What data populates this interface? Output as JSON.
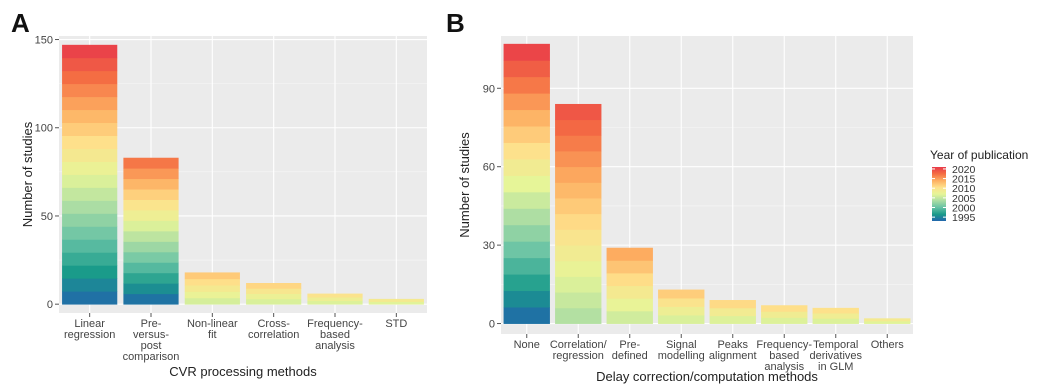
{
  "panels": [
    {
      "letter": "A",
      "chart_data": {
        "type": "bar",
        "stacked_by": "Year of publication",
        "categories": [
          [
            "Linear",
            "regression"
          ],
          [
            "Pre-",
            "versus-",
            "post",
            "comparison"
          ],
          [
            "Non-linear",
            "fit"
          ],
          [
            "Cross-",
            "correlation"
          ],
          [
            "Frequency-",
            "based",
            "analysis"
          ],
          [
            "STD"
          ]
        ],
        "values": [
          147,
          83,
          18,
          12,
          6,
          3
        ],
        "xlabel": "CVR processing methods",
        "ylabel": "Number of studies",
        "yticks": [
          0,
          50,
          100,
          150
        ],
        "ylim": [
          -5,
          152
        ],
        "grid": true
      }
    },
    {
      "letter": "B",
      "chart_data": {
        "type": "bar",
        "stacked_by": "Year of publication",
        "categories": [
          [
            "None"
          ],
          [
            "Correlation/",
            "regression"
          ],
          [
            "Pre-",
            "defined"
          ],
          [
            "Signal",
            "modelling"
          ],
          [
            "Peaks",
            "alignment"
          ],
          [
            "Frequency-",
            "based",
            "analysis"
          ],
          [
            "Temporal",
            "derivatives",
            "in GLM"
          ],
          [
            "Others"
          ]
        ],
        "values": [
          107,
          84,
          29,
          13,
          9,
          7,
          6,
          2
        ],
        "xlabel": "Delay correction/computation methods",
        "ylabel": "Number of studies",
        "yticks": [
          0,
          30,
          60,
          90
        ],
        "ylim": [
          -4,
          110
        ],
        "grid": true
      }
    }
  ],
  "legend": {
    "title": "Year of publication",
    "labels": [
      "2020",
      "2015",
      "2010",
      "2005",
      "2000",
      "1995"
    ],
    "year_range": [
      1993,
      2021
    ],
    "colors": [
      "#2166ac",
      "#1a9b8a",
      "#66c2a5",
      "#abdda4",
      "#e6f598",
      "#fee08b",
      "#fdae61",
      "#f46d43",
      "#e8394a"
    ],
    "position": "right"
  }
}
